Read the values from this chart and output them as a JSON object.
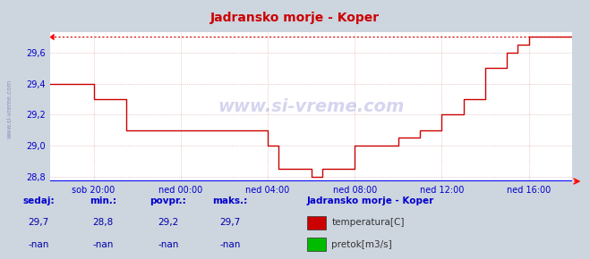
{
  "title": "Jadransko morje - Koper",
  "bg_color": "#cdd5df",
  "plot_bg_color": "#ffffff",
  "grid_color": "#daa0a0",
  "axis_color": "#0000cc",
  "title_color": "#cc0000",
  "line_color": "#cc0000",
  "dashed_line_color": "#cc0000",
  "xticklabels": [
    "sob 20:00",
    "ned 00:00",
    "ned 04:00",
    "ned 08:00",
    "ned 12:00",
    "ned 16:00"
  ],
  "xtick_positions": [
    2,
    6,
    10,
    14,
    18,
    22
  ],
  "xlim": [
    0,
    24
  ],
  "ylim": [
    28.77,
    29.73
  ],
  "yticks": [
    28.8,
    29.0,
    29.2,
    29.4,
    29.6
  ],
  "max_line_y": 29.7,
  "watermark": "www.si-vreme.com",
  "legend_title": "Jadransko morje - Koper",
  "legend_items": [
    {
      "label": "temperatura[C]",
      "color": "#cc0000"
    },
    {
      "label": "pretok[m3/s]",
      "color": "#00bb00"
    }
  ],
  "footer_labels": [
    "sedaj:",
    "min.:",
    "povpr.:",
    "maks.:"
  ],
  "footer_values": [
    "29,7",
    "28,8",
    "29,2",
    "29,7"
  ],
  "footer_values2": [
    "-nan",
    "-nan",
    "-nan",
    "-nan"
  ],
  "temp_data_x": [
    0,
    2,
    2,
    3.5,
    3.5,
    4.5,
    4.5,
    5.5,
    5.5,
    10,
    10,
    10.5,
    10.5,
    12,
    12,
    12.5,
    12.5,
    13,
    13,
    14,
    14,
    15,
    15,
    16,
    16,
    17,
    17,
    18,
    18,
    19,
    19,
    20,
    20,
    21,
    21,
    21.5,
    21.5,
    22,
    22,
    22.5,
    22.5,
    23,
    23,
    24
  ],
  "temp_data_y": [
    29.4,
    29.4,
    29.3,
    29.3,
    29.1,
    29.1,
    29.1,
    29.1,
    29.1,
    29.1,
    29.0,
    29.0,
    28.85,
    28.85,
    28.8,
    28.8,
    28.85,
    28.85,
    28.85,
    28.85,
    29.0,
    29.0,
    29.0,
    29.0,
    29.05,
    29.05,
    29.1,
    29.1,
    29.2,
    29.2,
    29.3,
    29.3,
    29.5,
    29.5,
    29.6,
    29.6,
    29.65,
    29.65,
    29.7,
    29.7,
    29.7,
    29.7,
    29.7,
    29.7
  ]
}
